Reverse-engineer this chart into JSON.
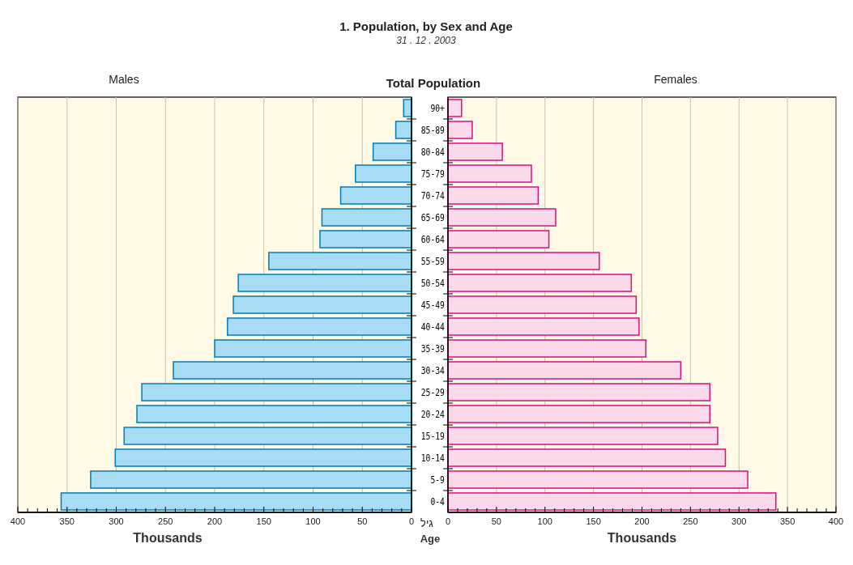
{
  "chart_data": [
    {
      "type": "bar",
      "orientation": "horizontal",
      "title": "Males",
      "xlabel": "Thousands",
      "annotations": [
        "1.  Population, by Sex and Age",
        "31 . 12 . 2003",
        "Total Population"
      ],
      "categories": [
        null,
        null,
        null,
        null,
        null,
        null,
        null,
        null,
        null,
        null,
        null,
        null,
        null,
        null,
        null,
        null,
        null,
        null,
        null
      ],
      "series": [
        {
          "color": "#a8dcf4",
          "values": [
            8,
            16,
            39,
            57,
            72,
            91,
            93,
            145,
            176,
            181,
            187,
            200,
            242,
            274,
            279,
            292,
            301,
            326,
            356
          ]
        }
      ],
      "xlim": [
        400,
        0
      ],
      "xticks": [
        400,
        {
          "value": 390,
          "label": null
        },
        {
          "value": 380,
          "label": null
        },
        {
          "value": 370,
          "label": null
        },
        {
          "value": 360,
          "label": null
        },
        350,
        {
          "value": 340,
          "label": null
        },
        {
          "value": 330,
          "label": null
        },
        {
          "value": 320,
          "label": null
        },
        {
          "value": 310,
          "label": null
        },
        300,
        {
          "value": 290,
          "label": null
        },
        {
          "value": 280,
          "label": null
        },
        {
          "value": 270,
          "label": null
        },
        {
          "value": 260,
          "label": null
        },
        250,
        {
          "value": 240,
          "label": null
        },
        {
          "value": 230,
          "label": null
        },
        {
          "value": 220,
          "label": null
        },
        {
          "value": 210,
          "label": null
        },
        200,
        {
          "value": 190,
          "label": null
        },
        {
          "value": 180,
          "label": null
        },
        {
          "value": 170,
          "label": null
        },
        {
          "value": 160,
          "label": null
        },
        150,
        {
          "value": 140,
          "label": null
        },
        {
          "value": 130,
          "label": null
        },
        {
          "value": 120,
          "label": null
        },
        {
          "value": 110,
          "label": null
        },
        100,
        {
          "value": 90,
          "label": null
        },
        {
          "value": 80,
          "label": null
        },
        {
          "value": 70,
          "label": null
        },
        {
          "value": 60,
          "label": null
        },
        50,
        {
          "value": 40,
          "label": null
        },
        {
          "value": 30,
          "label": null
        },
        {
          "value": 20,
          "label": null
        },
        {
          "value": 10,
          "label": null
        },
        0
      ],
      "grid": "x",
      "tick_labels": "x"
    },
    {
      "type": "bar",
      "orientation": "horizontal",
      "title": "Females",
      "xlabel": "Thousands",
      "ylabel": "Age",
      "annotations": [
        "גיל"
      ],
      "categories": [
        "90+",
        "85-89",
        "80-84",
        "75-79",
        "70-74",
        "65-69",
        "60-64",
        "55-59",
        "50-54",
        "45-49",
        "40-44",
        "35-39",
        "30-34",
        "25-29",
        "20-24",
        "15-19",
        "10-14",
        "5-9",
        "0-4"
      ],
      "series": [
        {
          "color": "#f9d9ea",
          "values": [
            14,
            25,
            56,
            86,
            93,
            111,
            104,
            156,
            189,
            194,
            197,
            204,
            240,
            270,
            270,
            278,
            286,
            309,
            338
          ]
        }
      ],
      "xlim": [
        0,
        400
      ],
      "xticks": [
        0,
        {
          "value": 10,
          "label": null
        },
        {
          "value": 20,
          "label": null
        },
        {
          "value": 30,
          "label": null
        },
        {
          "value": 40,
          "label": null
        },
        50,
        {
          "value": 60,
          "label": null
        },
        {
          "value": 70,
          "label": null
        },
        {
          "value": 80,
          "label": null
        },
        {
          "value": 90,
          "label": null
        },
        100,
        {
          "value": 110,
          "label": null
        },
        {
          "value": 120,
          "label": null
        },
        {
          "value": 130,
          "label": null
        },
        {
          "value": 140,
          "label": null
        },
        150,
        {
          "value": 160,
          "label": null
        },
        {
          "value": 170,
          "label": null
        },
        {
          "value": 180,
          "label": null
        },
        {
          "value": 190,
          "label": null
        },
        200,
        {
          "value": 210,
          "label": null
        },
        {
          "value": 220,
          "label": null
        },
        {
          "value": 230,
          "label": null
        },
        {
          "value": 240,
          "label": null
        },
        250,
        {
          "value": 260,
          "label": null
        },
        {
          "value": 270,
          "label": null
        },
        {
          "value": 280,
          "label": null
        },
        {
          "value": 290,
          "label": null
        },
        300,
        {
          "value": 310,
          "label": null
        },
        {
          "value": 320,
          "label": null
        },
        {
          "value": 330,
          "label": null
        },
        {
          "value": 340,
          "label": null
        },
        350,
        {
          "value": 360,
          "label": null
        },
        {
          "value": 370,
          "label": null
        },
        {
          "value": 380,
          "label": null
        },
        {
          "value": 390,
          "label": null
        },
        400
      ],
      "grid": "x"
    }
  ]
}
